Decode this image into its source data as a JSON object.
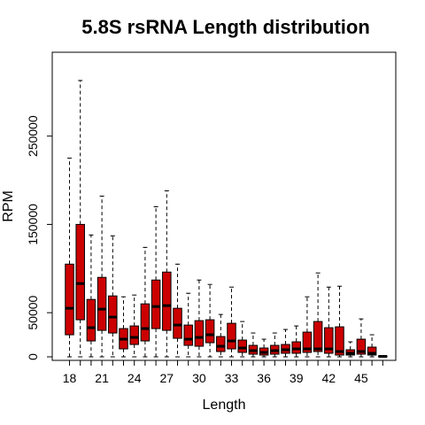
{
  "chart_data": {
    "type": "boxplot",
    "title": "5.8S rsRNA Length distribution",
    "xlabel": "Length",
    "ylabel": "RPM",
    "x_categories": [
      18,
      19,
      20,
      21,
      22,
      23,
      24,
      25,
      26,
      27,
      28,
      29,
      30,
      31,
      32,
      33,
      34,
      35,
      36,
      37,
      38,
      39,
      40,
      41,
      42,
      43,
      44,
      45,
      46,
      47
    ],
    "x_tick_labels": [
      "18",
      "21",
      "24",
      "27",
      "30",
      "33",
      "36",
      "39",
      "42",
      "45"
    ],
    "y_tick_labels": [
      "0",
      "50000",
      "150000",
      "250000"
    ],
    "ylim": [
      -4000,
      345000
    ],
    "grid": false,
    "legend": "none",
    "box_color": "#cc0000",
    "series": [
      {
        "x": 18,
        "min": 0,
        "q1": 25000,
        "median": 55000,
        "q3": 105000,
        "max": 225000
      },
      {
        "x": 19,
        "min": 0,
        "q1": 42000,
        "median": 83000,
        "q3": 150000,
        "max": 313000
      },
      {
        "x": 20,
        "min": 0,
        "q1": 18000,
        "median": 33000,
        "q3": 65000,
        "max": 138000
      },
      {
        "x": 21,
        "min": 0,
        "q1": 30000,
        "median": 54000,
        "q3": 90000,
        "max": 182000
      },
      {
        "x": 22,
        "min": 0,
        "q1": 27000,
        "median": 45000,
        "q3": 69000,
        "max": 137000
      },
      {
        "x": 23,
        "min": 0,
        "q1": 9000,
        "median": 20000,
        "q3": 32000,
        "max": 68000
      },
      {
        "x": 24,
        "min": 0,
        "q1": 14000,
        "median": 22000,
        "q3": 35000,
        "max": 70000
      },
      {
        "x": 25,
        "min": 0,
        "q1": 18000,
        "median": 32000,
        "q3": 60000,
        "max": 124000
      },
      {
        "x": 26,
        "min": 0,
        "q1": 32000,
        "median": 57000,
        "q3": 87000,
        "max": 170000
      },
      {
        "x": 27,
        "min": 0,
        "q1": 30000,
        "median": 58000,
        "q3": 96000,
        "max": 188000
      },
      {
        "x": 28,
        "min": 0,
        "q1": 21000,
        "median": 36000,
        "q3": 55000,
        "max": 105000
      },
      {
        "x": 29,
        "min": 0,
        "q1": 13000,
        "median": 20000,
        "q3": 36000,
        "max": 72000
      },
      {
        "x": 30,
        "min": 0,
        "q1": 12000,
        "median": 22000,
        "q3": 41000,
        "max": 87000
      },
      {
        "x": 31,
        "min": 0,
        "q1": 16000,
        "median": 25000,
        "q3": 42000,
        "max": 82000
      },
      {
        "x": 32,
        "min": 0,
        "q1": 6000,
        "median": 12000,
        "q3": 23000,
        "max": 48000
      },
      {
        "x": 33,
        "min": 0,
        "q1": 9000,
        "median": 18000,
        "q3": 38000,
        "max": 79000
      },
      {
        "x": 34,
        "min": 0,
        "q1": 5000,
        "median": 10000,
        "q3": 19000,
        "max": 40000
      },
      {
        "x": 35,
        "min": 0,
        "q1": 3000,
        "median": 7000,
        "q3": 13000,
        "max": 27000
      },
      {
        "x": 36,
        "min": 0,
        "q1": 2000,
        "median": 5000,
        "q3": 10000,
        "max": 20000
      },
      {
        "x": 37,
        "min": 0,
        "q1": 3000,
        "median": 7000,
        "q3": 13000,
        "max": 27000
      },
      {
        "x": 38,
        "min": 0,
        "q1": 4000,
        "median": 8000,
        "q3": 14000,
        "max": 31000
      },
      {
        "x": 39,
        "min": 0,
        "q1": 4000,
        "median": 9000,
        "q3": 17000,
        "max": 35000
      },
      {
        "x": 40,
        "min": 0,
        "q1": 5000,
        "median": 9000,
        "q3": 28000,
        "max": 68000
      },
      {
        "x": 41,
        "min": 0,
        "q1": 6000,
        "median": 9000,
        "q3": 40000,
        "max": 95000
      },
      {
        "x": 42,
        "min": 0,
        "q1": 4000,
        "median": 9000,
        "q3": 33000,
        "max": 79000
      },
      {
        "x": 43,
        "min": 0,
        "q1": 2000,
        "median": 6000,
        "q3": 34000,
        "max": 80000
      },
      {
        "x": 44,
        "min": 0,
        "q1": 2000,
        "median": 4000,
        "q3": 8000,
        "max": 17000
      },
      {
        "x": 45,
        "min": 0,
        "q1": 3000,
        "median": 6000,
        "q3": 20000,
        "max": 43000
      },
      {
        "x": 46,
        "min": 0,
        "q1": 2000,
        "median": 4000,
        "q3": 11000,
        "max": 25000
      },
      {
        "x": 47,
        "min": 0,
        "q1": 0,
        "median": 500,
        "q3": 1000,
        "max": 1000
      }
    ]
  }
}
